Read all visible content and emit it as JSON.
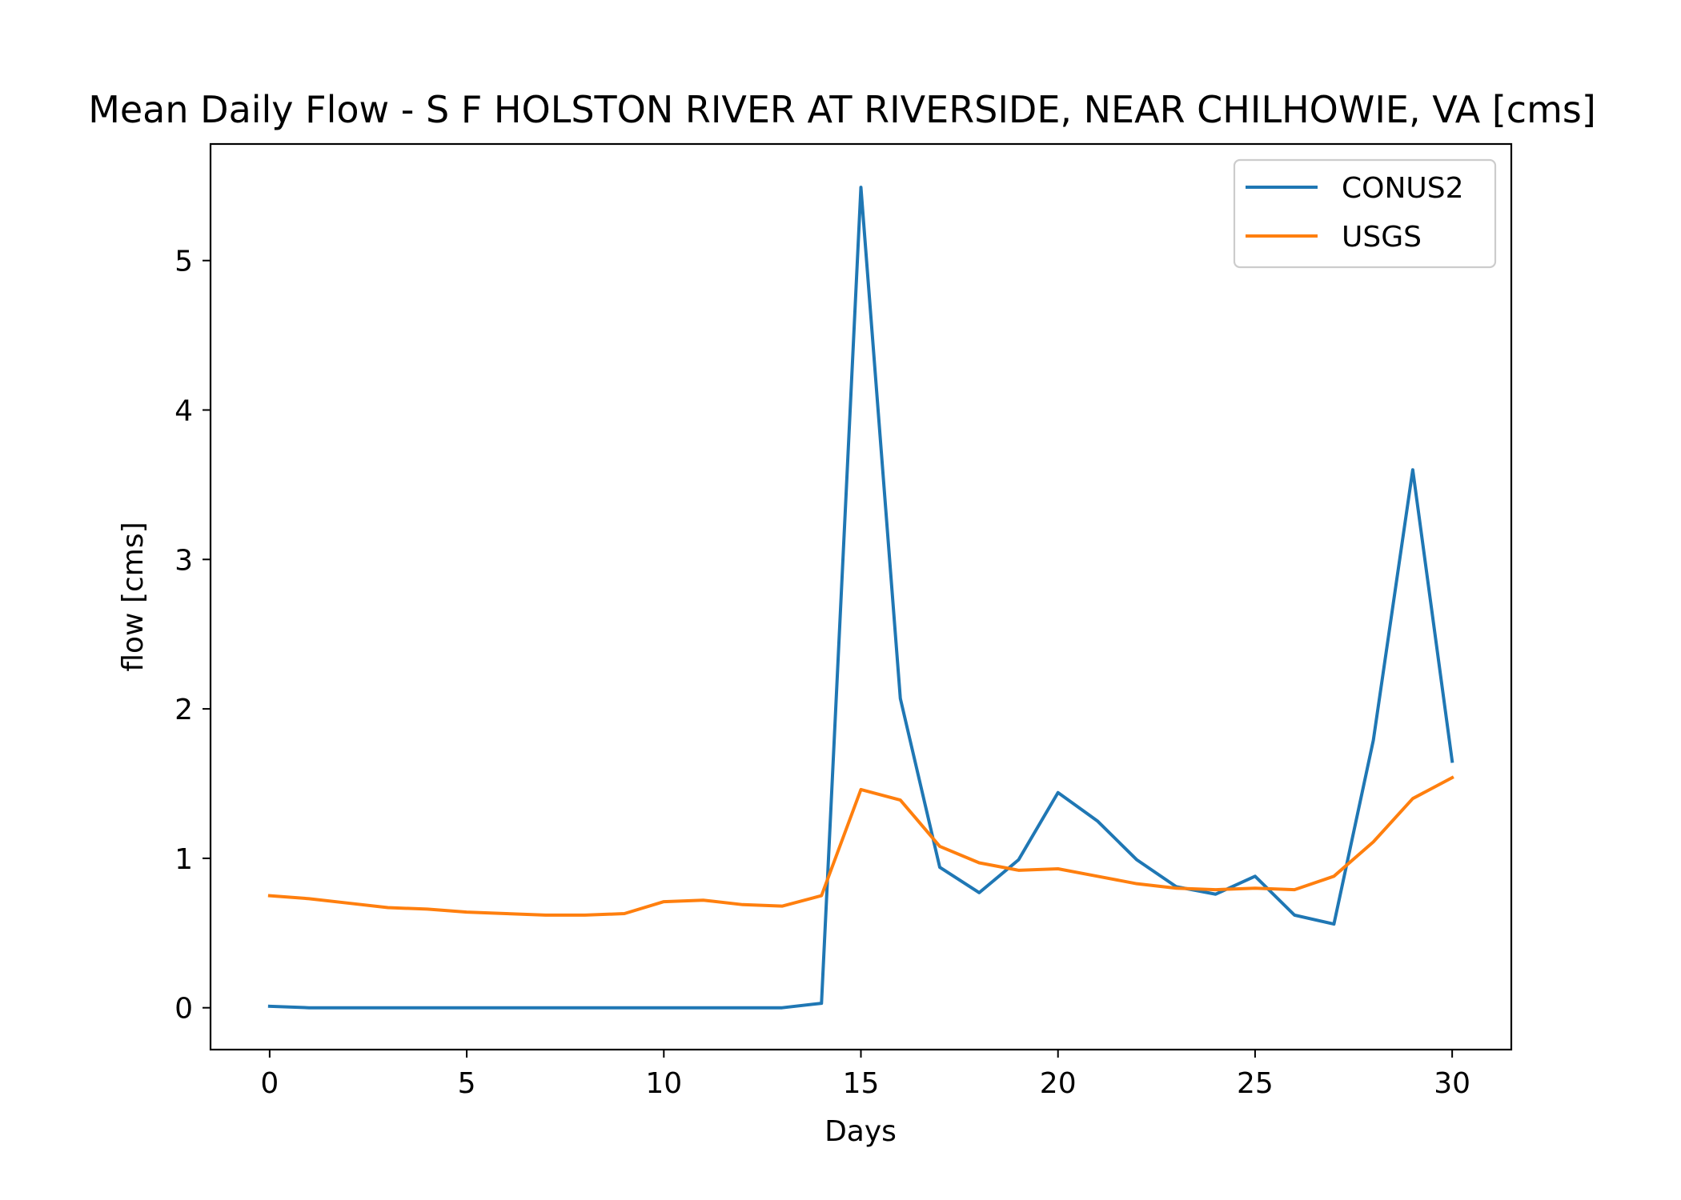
{
  "chart_data": {
    "type": "line",
    "title": "Mean Daily Flow - S F HOLSTON RIVER AT RIVERSIDE, NEAR CHILHOWIE, VA [cms]",
    "xlabel": "Days",
    "ylabel": "flow [cms]",
    "xlim": [
      -1.5,
      31.5
    ],
    "ylim": [
      -0.28,
      5.78
    ],
    "xticks": [
      0,
      5,
      10,
      15,
      20,
      25,
      30
    ],
    "yticks": [
      0,
      1,
      2,
      3,
      4,
      5
    ],
    "grid": false,
    "legend_position": "top-right",
    "x": [
      0,
      1,
      2,
      3,
      4,
      5,
      6,
      7,
      8,
      9,
      10,
      11,
      12,
      13,
      14,
      15,
      16,
      17,
      18,
      19,
      20,
      21,
      22,
      23,
      24,
      25,
      26,
      27,
      28,
      29,
      30
    ],
    "series": [
      {
        "name": "CONUS2",
        "color": "#1f77b4",
        "values": [
          0.01,
          0.0,
          0.0,
          0.0,
          0.0,
          0.0,
          0.0,
          0.0,
          0.0,
          0.0,
          0.0,
          0.0,
          0.0,
          0.0,
          0.03,
          5.49,
          2.07,
          0.94,
          0.77,
          0.99,
          1.44,
          1.25,
          0.99,
          0.81,
          0.76,
          0.88,
          0.62,
          0.56,
          1.79,
          3.6,
          1.65
        ]
      },
      {
        "name": "USGS",
        "color": "#ff7f0e",
        "values": [
          0.75,
          0.73,
          0.7,
          0.67,
          0.66,
          0.64,
          0.63,
          0.62,
          0.62,
          0.63,
          0.71,
          0.72,
          0.69,
          0.68,
          0.75,
          1.46,
          1.39,
          1.08,
          0.97,
          0.92,
          0.93,
          0.88,
          0.83,
          0.8,
          0.79,
          0.8,
          0.79,
          0.88,
          1.11,
          1.4,
          1.54
        ]
      }
    ]
  }
}
